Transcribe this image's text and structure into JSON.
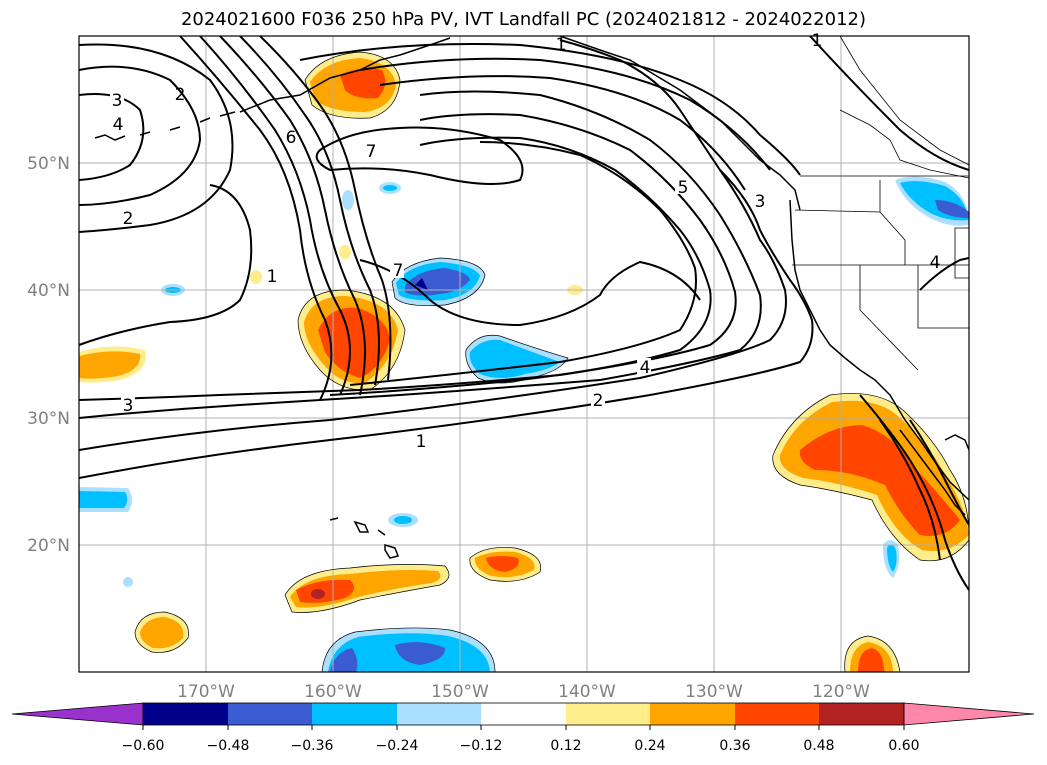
{
  "title": "2024021600 F036 250 hPa PV, IVT Landfall PC (2024021812 - 2024022012)",
  "lat_labels": [
    "50°N",
    "40°N",
    "30°N",
    "20°N"
  ],
  "lon_labels": [
    "170°W",
    "160°W",
    "150°W",
    "140°W",
    "130°W",
    "120°W"
  ],
  "colorbar": {
    "ticks": [
      "−0.60",
      "−0.48",
      "−0.36",
      "−0.24",
      "−0.12",
      "0.12",
      "0.24",
      "0.36",
      "0.48",
      "0.60"
    ],
    "colors": [
      "#9932cc",
      "#00008b",
      "#3a5bd1",
      "#00bfff",
      "#aadfff",
      "#ffffff",
      "#ffec8b",
      "#ffa500",
      "#ff4500",
      "#b22222",
      "#ff88aa"
    ]
  },
  "contour_labels": [
    "1",
    "1",
    "1",
    "1",
    "2",
    "2",
    "2",
    "3",
    "3",
    "3",
    "4",
    "4",
    "4",
    "5",
    "6",
    "7",
    "7"
  ]
}
